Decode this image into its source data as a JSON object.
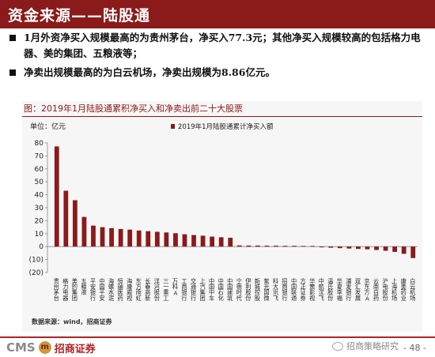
{
  "header": {
    "title": "资金来源——陆股通"
  },
  "bullets": [
    "1月外资净买入规模最高的为贵州茅台，净买入77.3元；其他净买入规模较高的包括格力电器、美的集团、五粮液等；",
    "净卖出规模最高的为白云机场，净卖出规模为8.86亿元。"
  ],
  "chart_title": "图：2019年1月陆股通累积净买入和净卖出前二十大股票",
  "chart_data": {
    "type": "bar",
    "title": "图：2019年1月陆股通累积净买入和净卖出前二十大股票",
    "unit_label": "单位：亿元",
    "legend": "2019年1月陆股通累计净买入额",
    "legend_placement": "top",
    "ylim": [
      -20,
      80
    ],
    "yticks": [
      "80",
      "70",
      "60",
      "50",
      "40",
      "30",
      "20",
      "10",
      "0",
      "(10)",
      "(20)"
    ],
    "yticks_values": [
      80,
      70,
      60,
      50,
      40,
      30,
      20,
      10,
      0,
      -10,
      -20
    ],
    "grid": false,
    "categories": [
      "贵州茅台",
      "格力电器",
      "美的集团",
      "五粮液",
      "平安银行",
      "中国平安",
      "海螺水泥",
      "恒瑞医药",
      "海康威视",
      "东方雨虹",
      "长春高新",
      "洋河股份",
      "三一重工",
      "万科A",
      "工商银行",
      "交通银行",
      "上汽集团",
      "中国中车",
      "中国石化",
      "中国建筑",
      "宁德时代",
      "伊利股份",
      "新城控股",
      "紫光国微",
      "科大讯飞",
      "招商银行",
      "中国联通",
      "方正证券",
      "华策影视",
      "中航沈飞",
      "温氏股份",
      "华夏幸福",
      "浦发银行",
      "双汇发展",
      "京东方A",
      "云南白药",
      "沪电股份",
      "上海机场",
      "康美药业",
      "白云机场"
    ],
    "values": [
      77.3,
      43.1,
      35.8,
      22.9,
      16.2,
      15.0,
      14.2,
      13.6,
      13.1,
      12.4,
      11.9,
      11.4,
      10.9,
      10.3,
      9.5,
      8.9,
      8.4,
      7.7,
      7.2,
      6.8,
      0.9,
      0.8,
      0.8,
      0.7,
      0.7,
      0.6,
      0.6,
      0.5,
      0.5,
      -0.6,
      -0.9,
      -1.2,
      -1.5,
      -1.8,
      -2.1,
      -2.6,
      -3.2,
      -4.1,
      -5.6,
      -8.86
    ],
    "bar_color": "#8b1a1a"
  },
  "source": "数据来源：wind，招商证券",
  "footer": {
    "logo_latin": "CMS",
    "logo_emblem": "m",
    "logo_cn": "招商证券",
    "wechat_text": "招商策略研究",
    "page": "- 48 -"
  }
}
